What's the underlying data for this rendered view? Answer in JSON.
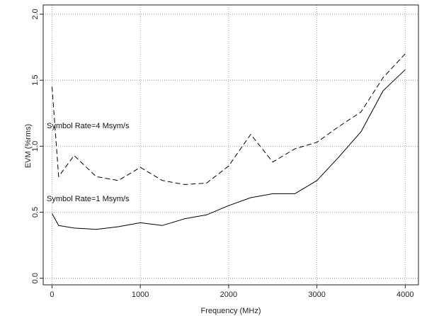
{
  "chart_data": {
    "type": "line",
    "xlabel": "Frequency (MHz)",
    "ylabel": "EVM (%rms)",
    "xlim": [
      -100,
      4150
    ],
    "ylim": [
      -0.05,
      2.07
    ],
    "grid": true,
    "x_ticks": [
      0,
      1000,
      2000,
      3000,
      4000
    ],
    "x_tick_labels": [
      "0",
      "1000",
      "2000",
      "3000",
      "4000"
    ],
    "y_ticks": [
      0.0,
      0.5,
      1.0,
      1.5,
      2.0
    ],
    "y_tick_labels": [
      "0.0",
      "0.5",
      "1.0",
      "1.5",
      "2.0"
    ],
    "series": [
      {
        "name": "Symbol Rate=4 Msym/s",
        "style": "dashed",
        "color": "#000000",
        "x": [
          0,
          75,
          250,
          500,
          750,
          1000,
          1250,
          1500,
          1750,
          2000,
          2250,
          2500,
          2750,
          3000,
          3250,
          3500,
          3750,
          4000
        ],
        "y": [
          1.45,
          0.77,
          0.93,
          0.77,
          0.74,
          0.84,
          0.74,
          0.71,
          0.72,
          0.85,
          1.09,
          0.88,
          0.98,
          1.03,
          1.15,
          1.26,
          1.52,
          1.7
        ]
      },
      {
        "name": "Symbol Rate=1 Msym/s",
        "style": "solid",
        "color": "#000000",
        "x": [
          0,
          75,
          250,
          500,
          750,
          1000,
          1250,
          1500,
          1750,
          2000,
          2250,
          2500,
          2750,
          3000,
          3250,
          3500,
          3750,
          4000
        ],
        "y": [
          0.49,
          0.4,
          0.38,
          0.37,
          0.39,
          0.42,
          0.4,
          0.45,
          0.48,
          0.55,
          0.61,
          0.64,
          0.64,
          0.74,
          0.92,
          1.11,
          1.42,
          1.58
        ]
      }
    ]
  }
}
